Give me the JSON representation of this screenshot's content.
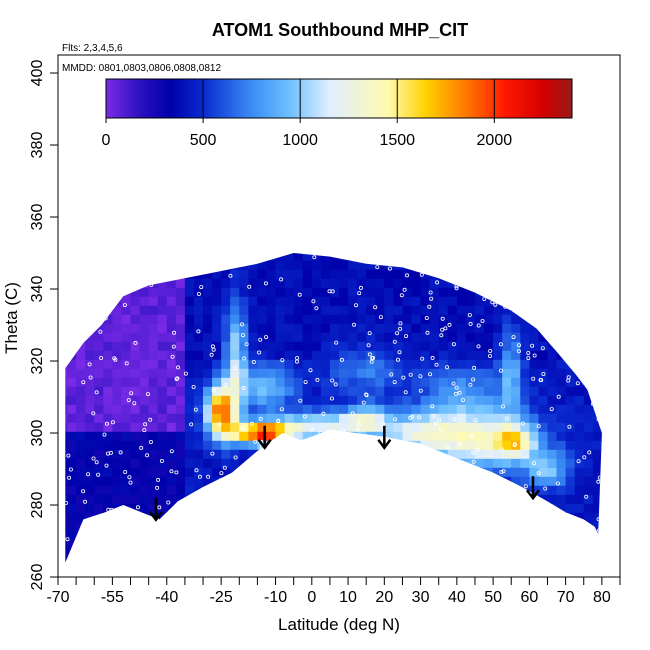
{
  "chart_data": {
    "type": "heatmap",
    "title": "ATOM1 Southbound MHP_CIT",
    "subtitle_flights": "Flts: 2,3,4,5,6",
    "subtitle_dates": "MMDD: 0801,0803,0806,0808,0812",
    "xlabel": "Latitude (deg N)",
    "ylabel": "Theta (C)",
    "xlim": [
      -70,
      85
    ],
    "ylim": [
      260,
      405
    ],
    "x_ticks": [
      -70,
      -55,
      -40,
      -25,
      -10,
      0,
      10,
      20,
      30,
      40,
      50,
      60,
      70,
      80
    ],
    "x_tick_labels": [
      "-70",
      "-55",
      "-40",
      "-25",
      "-10",
      "0",
      "10",
      "20",
      "30",
      "40",
      "50",
      "60",
      "70",
      "80"
    ],
    "x_minor_ticks": [
      -65,
      -60,
      -50,
      -45,
      -35,
      -30,
      -20,
      -15,
      -5,
      5,
      15,
      25,
      35,
      45,
      55,
      65,
      75,
      85
    ],
    "y_ticks": [
      260,
      280,
      300,
      320,
      340,
      360,
      380,
      400
    ],
    "y_tick_labels": [
      "260",
      "280",
      "300",
      "320",
      "340",
      "360",
      "380",
      "400"
    ],
    "colorbar": {
      "range": [
        0,
        2400
      ],
      "ticks": [
        0,
        500,
        1000,
        1500,
        2000
      ],
      "tick_labels": [
        "0",
        "500",
        "1000",
        "1500",
        "2000"
      ],
      "stops": [
        {
          "v": 0,
          "color": "#7a2be6"
        },
        {
          "v": 180,
          "color": "#2a10c0"
        },
        {
          "v": 330,
          "color": "#0000aa"
        },
        {
          "v": 500,
          "color": "#0a2ad0"
        },
        {
          "v": 750,
          "color": "#3a8cf5"
        },
        {
          "v": 950,
          "color": "#70c2ff"
        },
        {
          "v": 1150,
          "color": "#dfeeff"
        },
        {
          "v": 1450,
          "color": "#fffab0"
        },
        {
          "v": 1650,
          "color": "#ffd000"
        },
        {
          "v": 1850,
          "color": "#ff7a00"
        },
        {
          "v": 2050,
          "color": "#ff1a00"
        },
        {
          "v": 2250,
          "color": "#d40000"
        },
        {
          "v": 2400,
          "color": "#9a1a1a"
        }
      ]
    },
    "domain_top": [
      [
        -68,
        318
      ],
      [
        -63,
        325
      ],
      [
        -58,
        330
      ],
      [
        -52,
        338
      ],
      [
        -45,
        341
      ],
      [
        -35,
        343
      ],
      [
        -25,
        345
      ],
      [
        -15,
        347
      ],
      [
        -5,
        350
      ],
      [
        5,
        349
      ],
      [
        15,
        347
      ],
      [
        25,
        346
      ],
      [
        35,
        343
      ],
      [
        45,
        339
      ],
      [
        55,
        334
      ],
      [
        62,
        329
      ],
      [
        68,
        322
      ],
      [
        73,
        316
      ],
      [
        76,
        312
      ],
      [
        78,
        306
      ],
      [
        80,
        300
      ]
    ],
    "domain_bottom": [
      [
        -68,
        264
      ],
      [
        -63,
        276
      ],
      [
        -57,
        278
      ],
      [
        -52,
        280
      ],
      [
        -47,
        278
      ],
      [
        -42,
        276
      ],
      [
        -37,
        281
      ],
      [
        -30,
        285
      ],
      [
        -22,
        289
      ],
      [
        -15,
        295
      ],
      [
        -11,
        298
      ],
      [
        -8,
        300
      ],
      [
        -3,
        298
      ],
      [
        0,
        299
      ],
      [
        5,
        301
      ],
      [
        12,
        300
      ],
      [
        20,
        299
      ],
      [
        30,
        297
      ],
      [
        40,
        293
      ],
      [
        50,
        289
      ],
      [
        58,
        285
      ],
      [
        65,
        281
      ],
      [
        70,
        278
      ],
      [
        75,
        276
      ],
      [
        78,
        274
      ],
      [
        79,
        272
      ]
    ],
    "field": {
      "background": [
        {
          "x0": -70,
          "x1": -35,
          "y0": 300,
          "y1": 360,
          "value": 60
        },
        {
          "x0": -35,
          "x1": 85,
          "y0": 320,
          "y1": 360,
          "value": 380
        },
        {
          "x0": -70,
          "x1": -35,
          "y0": 255,
          "y1": 300,
          "value": 320
        },
        {
          "x0": -35,
          "x1": 85,
          "y0": 255,
          "y1": 320,
          "value": 420
        }
      ],
      "features": [
        {
          "x": -25,
          "y": 306,
          "sx": 4,
          "sy": 7,
          "value": 1500
        },
        {
          "x": -14,
          "y": 300,
          "sx": 8,
          "sy": 3,
          "value": 1550
        },
        {
          "x": -21,
          "y": 322,
          "sx": 3,
          "sy": 15,
          "value": 650
        },
        {
          "x": -13,
          "y": 313,
          "sx": 8,
          "sy": 6,
          "value": 550
        },
        {
          "x": 2,
          "y": 302,
          "sx": 15,
          "sy": 4,
          "value": 750
        },
        {
          "x": 15,
          "y": 304,
          "sx": 6,
          "sy": 4,
          "value": 600
        },
        {
          "x": 30,
          "y": 300,
          "sx": 12,
          "sy": 6,
          "value": 700
        },
        {
          "x": 48,
          "y": 298,
          "sx": 14,
          "sy": 8,
          "value": 850
        },
        {
          "x": 56,
          "y": 298,
          "sx": 5,
          "sy": 4,
          "value": 700
        },
        {
          "x": 55,
          "y": 318,
          "sx": 3,
          "sy": 12,
          "value": 450
        },
        {
          "x": 15,
          "y": 318,
          "sx": 10,
          "sy": 7,
          "value": 300
        },
        {
          "x": 42,
          "y": 311,
          "sx": 12,
          "sy": 8,
          "value": 350
        },
        {
          "x": 65,
          "y": 290,
          "sx": 6,
          "sy": 5,
          "value": 500
        }
      ]
    },
    "arrows": [
      {
        "lat": -43,
        "theta": 282
      },
      {
        "lat": -13,
        "theta": 302
      },
      {
        "lat": 20,
        "theta": 302
      },
      {
        "lat": 61,
        "theta": 288
      }
    ]
  }
}
